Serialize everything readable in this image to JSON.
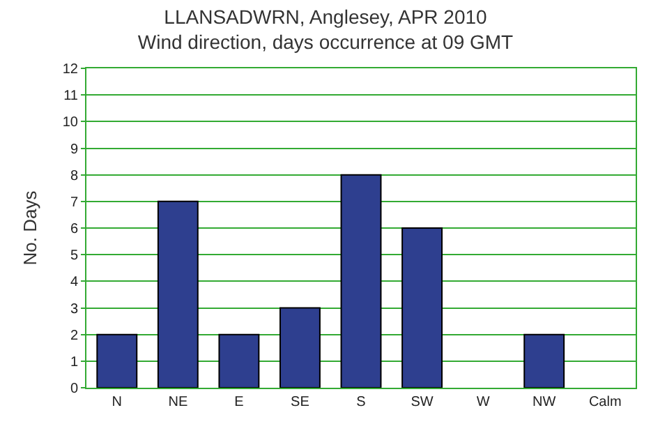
{
  "chart_data": {
    "type": "bar",
    "title": "LLANSADWRN, Anglesey, APR 2010\nWind direction, days occurrence at 09 GMT",
    "ylabel": "No. Days",
    "categories": [
      "N",
      "NE",
      "E",
      "SE",
      "S",
      "SW",
      "W",
      "NW",
      "Calm"
    ],
    "values": [
      2,
      7,
      2,
      3,
      8,
      6,
      0,
      2,
      0
    ],
    "color": "#2e3f8f",
    "ylim": [
      0,
      12
    ],
    "yticks": [
      0,
      1,
      2,
      3,
      4,
      5,
      6,
      7,
      8,
      9,
      10,
      11,
      12
    ],
    "grid": "y"
  }
}
